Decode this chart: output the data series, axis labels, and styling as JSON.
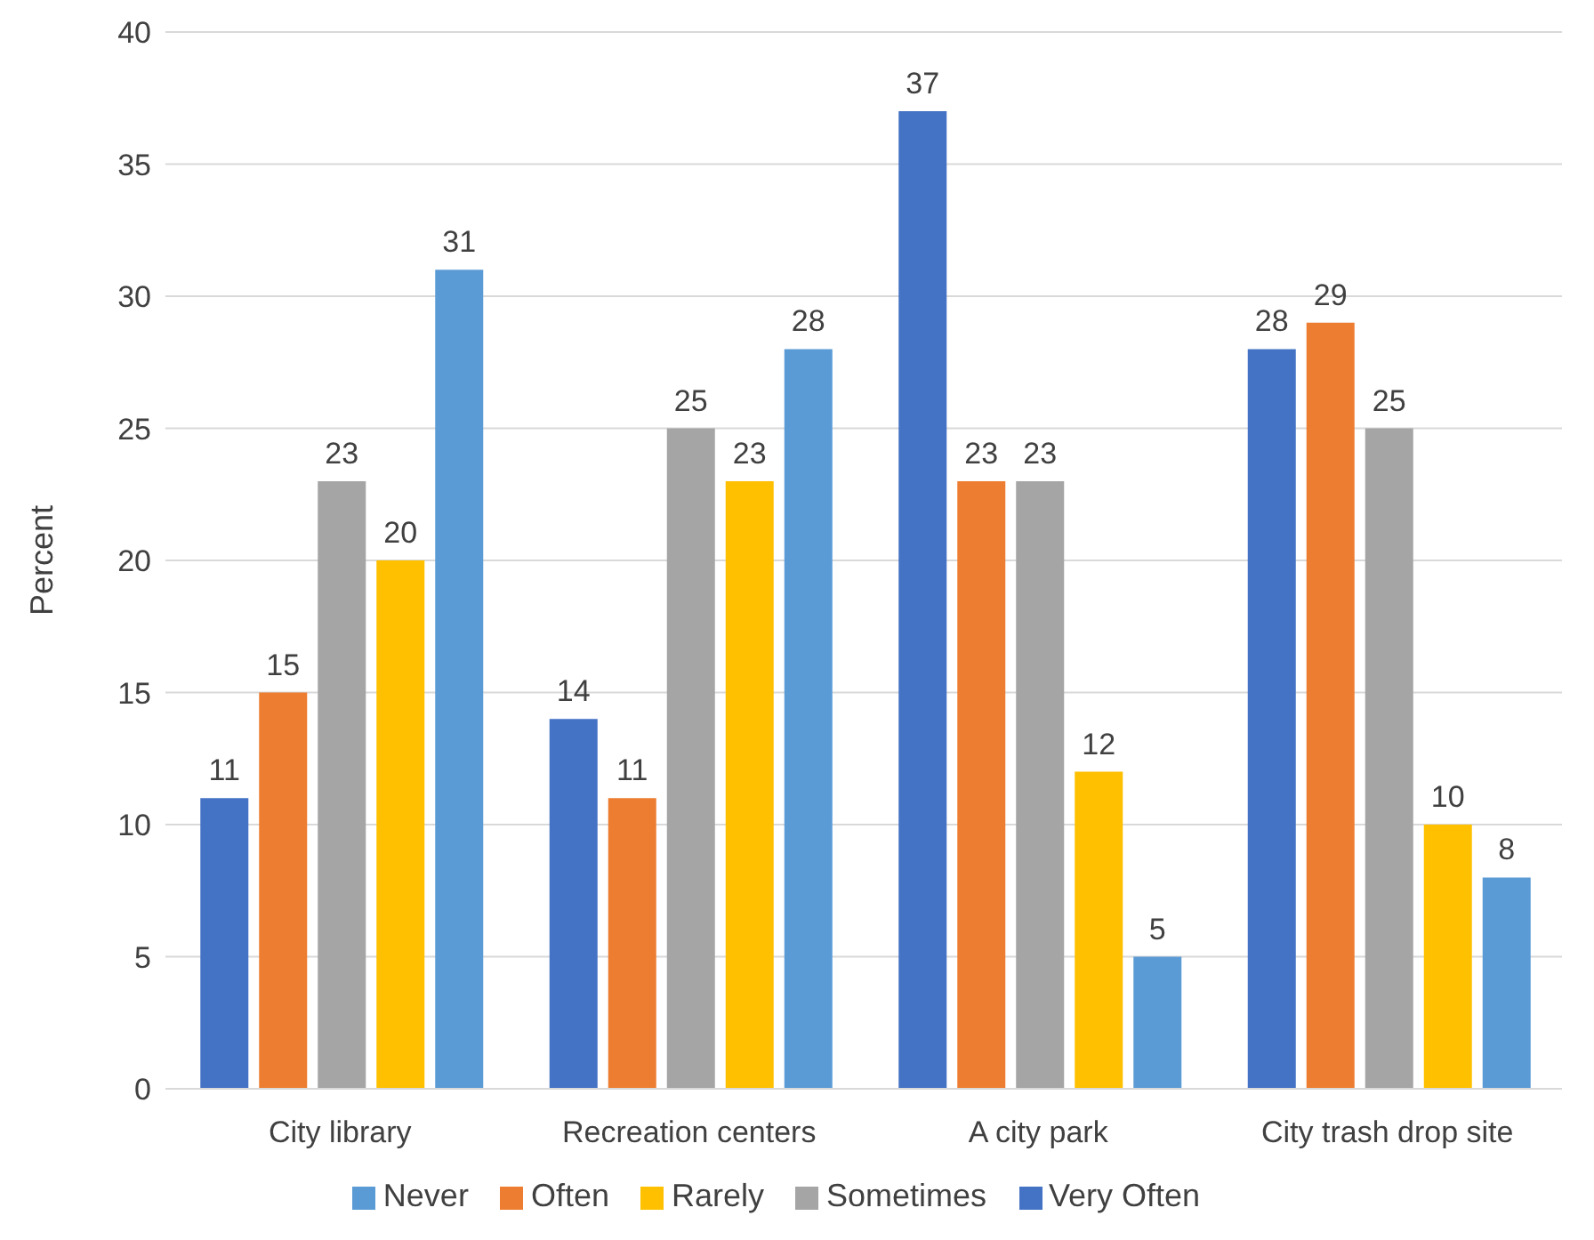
{
  "chart_data": {
    "type": "bar",
    "ylabel": "Percent",
    "categories": [
      "City library",
      "Recreation centers",
      "A city park",
      "City trash drop site"
    ],
    "series": [
      {
        "name": "Very Often",
        "color": "#4472c4",
        "values": [
          11,
          14,
          37,
          28
        ]
      },
      {
        "name": "Often",
        "color": "#ed7d31",
        "values": [
          15,
          11,
          23,
          29
        ]
      },
      {
        "name": "Sometimes",
        "color": "#a5a5a5",
        "values": [
          23,
          25,
          23,
          25
        ]
      },
      {
        "name": "Rarely",
        "color": "#ffc000",
        "values": [
          20,
          23,
          12,
          10
        ]
      },
      {
        "name": "Never",
        "color": "#5b9bd5",
        "values": [
          31,
          28,
          5,
          8
        ]
      }
    ],
    "ylim": [
      0,
      40
    ],
    "yticks": [
      0,
      5,
      10,
      15,
      20,
      25,
      30,
      35,
      40
    ],
    "grid": "y",
    "legend": "bottom",
    "data_labels": true
  }
}
